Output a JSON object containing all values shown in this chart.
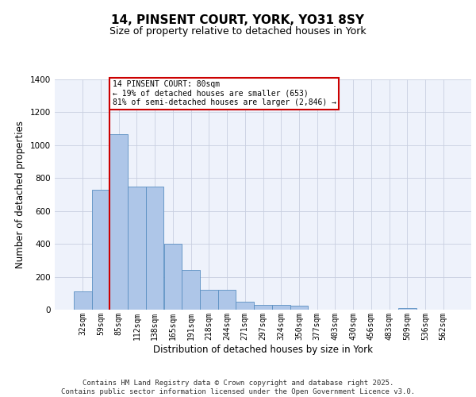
{
  "title_line1": "14, PINSENT COURT, YORK, YO31 8SY",
  "title_line2": "Size of property relative to detached houses in York",
  "xlabel": "Distribution of detached houses by size in York",
  "ylabel": "Number of detached properties",
  "categories": [
    "32sqm",
    "59sqm",
    "85sqm",
    "112sqm",
    "138sqm",
    "165sqm",
    "191sqm",
    "218sqm",
    "244sqm",
    "271sqm",
    "297sqm",
    "324sqm",
    "350sqm",
    "377sqm",
    "403sqm",
    "430sqm",
    "456sqm",
    "483sqm",
    "509sqm",
    "536sqm",
    "562sqm"
  ],
  "values": [
    110,
    730,
    1065,
    750,
    750,
    400,
    240,
    120,
    120,
    50,
    30,
    30,
    25,
    0,
    0,
    0,
    0,
    0,
    10,
    0,
    0
  ],
  "bar_color": "#aec6e8",
  "bar_edge_color": "#5a8fc2",
  "background_color": "#eef2fb",
  "grid_color": "#c8cfe0",
  "vline_x_index": 2,
  "vline_color": "#cc0000",
  "annotation_text": "14 PINSENT COURT: 80sqm\n← 19% of detached houses are smaller (653)\n81% of semi-detached houses are larger (2,846) →",
  "annotation_box_color": "#cc0000",
  "ylim": [
    0,
    1400
  ],
  "yticks": [
    0,
    200,
    400,
    600,
    800,
    1000,
    1200,
    1400
  ],
  "footer_line1": "Contains HM Land Registry data © Crown copyright and database right 2025.",
  "footer_line2": "Contains public sector information licensed under the Open Government Licence v3.0.",
  "title_fontsize": 11,
  "subtitle_fontsize": 9,
  "tick_fontsize": 7,
  "label_fontsize": 8.5,
  "footer_fontsize": 6.5
}
